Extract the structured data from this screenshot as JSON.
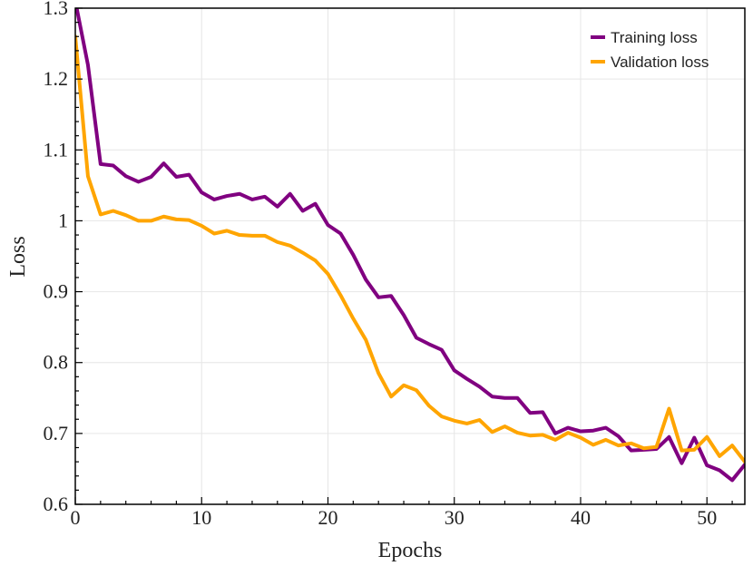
{
  "chart_data": {
    "type": "line",
    "title": "",
    "xlabel": "Epochs",
    "ylabel": "Loss",
    "xlim": [
      0,
      53
    ],
    "ylim": [
      0.6,
      1.3
    ],
    "x_ticks": [
      0,
      10,
      20,
      30,
      40,
      50
    ],
    "x_tick_labels": [
      "0",
      "10",
      "20",
      "30",
      "40",
      "50"
    ],
    "y_ticks": [
      0.6,
      0.7,
      0.8,
      0.9,
      1.0,
      1.1,
      1.2,
      1.3
    ],
    "y_tick_labels": [
      "0.6",
      "0.7",
      "0.8",
      "0.9",
      "1",
      "1.1",
      "1.2",
      "1.3"
    ],
    "grid": true,
    "legend_position": "top-right",
    "x": [
      0,
      1,
      2,
      3,
      4,
      5,
      6,
      7,
      8,
      9,
      10,
      11,
      12,
      13,
      14,
      15,
      16,
      17,
      18,
      19,
      20,
      21,
      22,
      23,
      24,
      25,
      26,
      27,
      28,
      29,
      30,
      31,
      32,
      33,
      34,
      35,
      36,
      37,
      38,
      39,
      40,
      41,
      42,
      43,
      44,
      45,
      46,
      47,
      48,
      49,
      50,
      51,
      52,
      53
    ],
    "series": [
      {
        "name": "Training loss",
        "color": "#800080",
        "values": [
          1.31,
          1.22,
          1.08,
          1.078,
          1.063,
          1.055,
          1.062,
          1.081,
          1.062,
          1.065,
          1.04,
          1.03,
          1.035,
          1.038,
          1.03,
          1.034,
          1.02,
          1.038,
          1.014,
          1.024,
          0.994,
          0.982,
          0.952,
          0.917,
          0.892,
          0.894,
          0.867,
          0.835,
          0.826,
          0.818,
          0.789,
          0.777,
          0.766,
          0.752,
          0.75,
          0.75,
          0.729,
          0.73,
          0.7,
          0.708,
          0.703,
          0.704,
          0.708,
          0.696,
          0.676,
          0.677,
          0.678,
          0.695,
          0.658,
          0.694,
          0.655,
          0.648,
          0.634,
          0.656
        ]
      },
      {
        "name": "Validation loss",
        "color": "#FFA500",
        "values": [
          1.26,
          1.063,
          1.009,
          1.014,
          1.008,
          1.0,
          1.0,
          1.006,
          1.002,
          1.001,
          0.993,
          0.982,
          0.986,
          0.98,
          0.979,
          0.979,
          0.97,
          0.965,
          0.955,
          0.944,
          0.925,
          0.895,
          0.862,
          0.832,
          0.785,
          0.752,
          0.768,
          0.761,
          0.739,
          0.724,
          0.718,
          0.714,
          0.719,
          0.702,
          0.71,
          0.701,
          0.697,
          0.698,
          0.691,
          0.701,
          0.694,
          0.684,
          0.691,
          0.683,
          0.686,
          0.679,
          0.681,
          0.735,
          0.676,
          0.677,
          0.695,
          0.668,
          0.683,
          0.66
        ]
      }
    ]
  }
}
